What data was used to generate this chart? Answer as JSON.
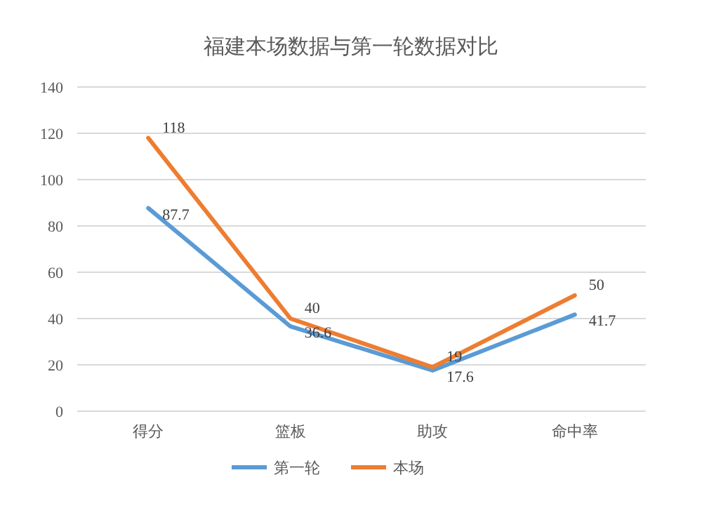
{
  "chart_data": {
    "type": "line",
    "title": "福建本场数据与第一轮数据对比",
    "categories": [
      "得分",
      "篮板",
      "助攻",
      "命中率"
    ],
    "series": [
      {
        "name": "第一轮",
        "color": "#5b9bd5",
        "values": [
          87.7,
          36.6,
          17.6,
          41.7
        ]
      },
      {
        "name": "本场",
        "color": "#ed7d31",
        "values": [
          118,
          40,
          19,
          50
        ]
      }
    ],
    "ylim": [
      0,
      140
    ],
    "yticks": [
      0,
      20,
      40,
      60,
      80,
      100,
      120,
      140
    ],
    "grid": "y",
    "legend": "bottom",
    "data_labels": true,
    "marker": "none",
    "line_style": "solid"
  }
}
